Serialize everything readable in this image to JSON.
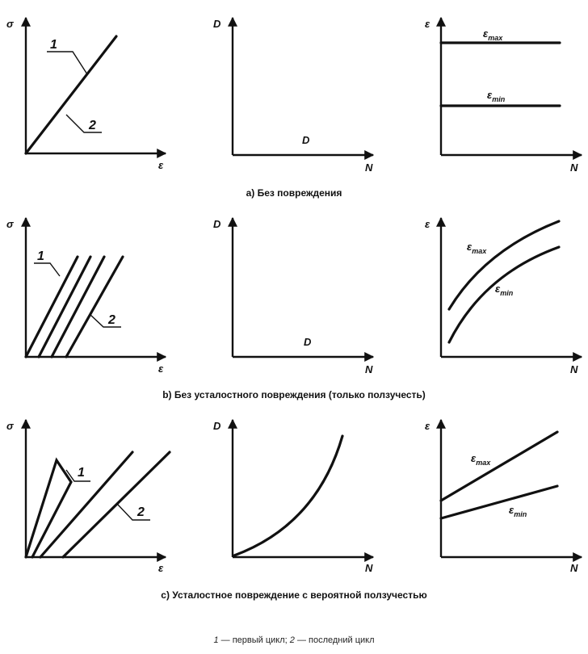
{
  "axes": {
    "stress": "σ",
    "strain": "ε",
    "damage": "D",
    "cycles": "N"
  },
  "markers": {
    "first": "1",
    "last": "2"
  },
  "strain_max": {
    "base": "ε",
    "sub": "max"
  },
  "strain_min": {
    "base": "ε",
    "sub": "min"
  },
  "rows": {
    "a": {
      "caption": "а) Без повреждения",
      "damage_label": "D"
    },
    "b": {
      "caption": "b) Без усталостного повреждения (только ползучесть)",
      "damage_label": "D"
    },
    "c": {
      "caption": "с) Усталостное повреждение с вероятной ползучестью"
    }
  },
  "legend": {
    "n1": "1",
    "t1": " — первый цикл; ",
    "n2": "2",
    "t2": " — последний цикл"
  }
}
